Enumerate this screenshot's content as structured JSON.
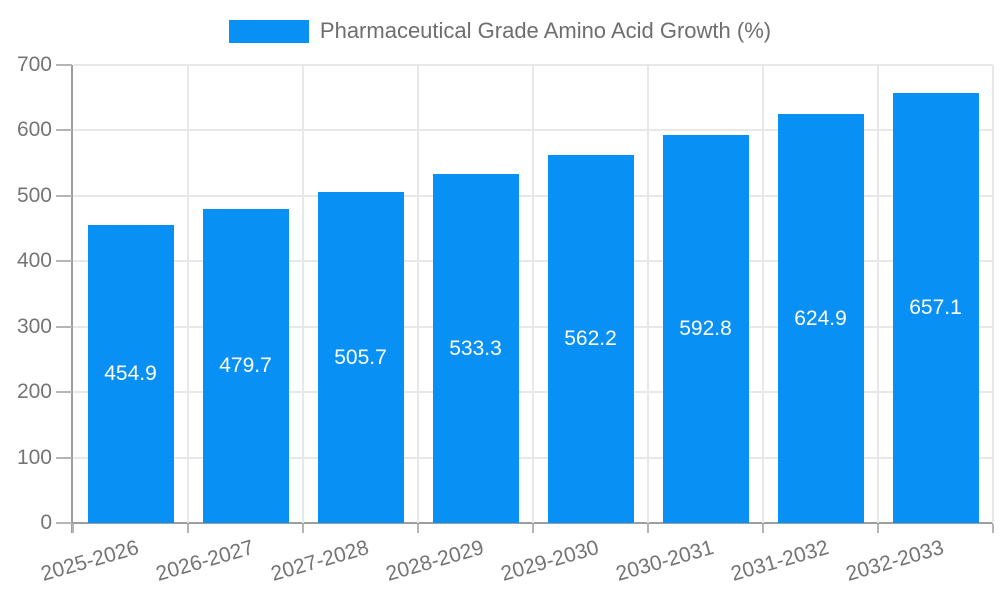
{
  "legend": {
    "label": "Pharmaceutical Grade Amino Acid Growth (%)"
  },
  "chart_data": {
    "type": "bar",
    "title": "Pharmaceutical Grade Amino Acid Growth (%)",
    "categories": [
      "2025-2026",
      "2026-2027",
      "2027-2028",
      "2028-2029",
      "2029-2030",
      "2030-2031",
      "2031-2032",
      "2032-2033"
    ],
    "values": [
      454.9,
      479.7,
      505.7,
      533.3,
      562.2,
      592.8,
      624.9,
      657.1
    ],
    "value_labels": [
      "454.9",
      "479.7",
      "505.7",
      "533.3",
      "562.2",
      "592.8",
      "624.9",
      "657.1"
    ],
    "xlabel": "",
    "ylabel": "",
    "ylim": [
      0,
      700
    ],
    "yticks": [
      0,
      100,
      200,
      300,
      400,
      500,
      600,
      700
    ],
    "grid": true,
    "legend_position": "top",
    "colors": {
      "bar": "#0890f5",
      "value_label": "#ffffff",
      "axis": "#9e9e9e",
      "tick": "#b5b5b5",
      "grid": "#e8e8e8",
      "tick_text": "#757575",
      "legend_text": "#6e6e6e",
      "background": "#ffffff"
    }
  }
}
